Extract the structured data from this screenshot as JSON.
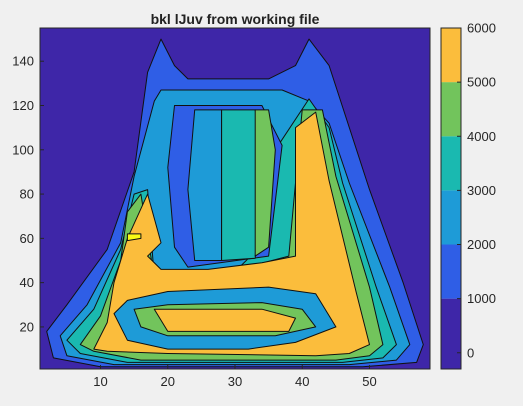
{
  "chart_data": {
    "type": "heatmap",
    "title": "bkl lJuv from working file",
    "xlabel": "",
    "ylabel": "",
    "xlim": [
      1,
      59
    ],
    "ylim": [
      1,
      155
    ],
    "x_ticks": [
      10,
      20,
      30,
      40,
      50
    ],
    "y_ticks": [
      20,
      40,
      60,
      80,
      100,
      120,
      140
    ],
    "colorbar": {
      "colormap": "parula",
      "range": [
        -300,
        6000
      ],
      "ticks": [
        0,
        1000,
        2000,
        3000,
        4000,
        5000,
        6000
      ]
    },
    "levels": [
      {
        "value": 0,
        "color": "#3e26a8"
      },
      {
        "value": 1000,
        "color": "#2f5ee6"
      },
      {
        "value": 2000,
        "color": "#1e9bd7"
      },
      {
        "value": 3000,
        "color": "#1ab9b0"
      },
      {
        "value": 4000,
        "color": "#72c45c"
      },
      {
        "value": 5000,
        "color": "#fbbd3c"
      },
      {
        "value": 6000,
        "color": "#f9fb15"
      }
    ],
    "regions": [
      {
        "level": 1,
        "points": [
          [
            2,
            18
          ],
          [
            5,
            30
          ],
          [
            11,
            55
          ],
          [
            15,
            90
          ],
          [
            17,
            135
          ],
          [
            19,
            150
          ],
          [
            21,
            138
          ],
          [
            23,
            132
          ],
          [
            35,
            132
          ],
          [
            39,
            138
          ],
          [
            41,
            150
          ],
          [
            44,
            138
          ],
          [
            50,
            82
          ],
          [
            55,
            40
          ],
          [
            58,
            12
          ],
          [
            57,
            4
          ],
          [
            49,
            2
          ],
          [
            10,
            2
          ],
          [
            3,
            6
          ]
        ]
      },
      {
        "level": 2,
        "points": [
          [
            4,
            16
          ],
          [
            8,
            30
          ],
          [
            13,
            58
          ],
          [
            15,
            88
          ],
          [
            18,
            122
          ],
          [
            19,
            127
          ],
          [
            37,
            127
          ],
          [
            41,
            122
          ],
          [
            44,
            112
          ],
          [
            47,
            85
          ],
          [
            53,
            38
          ],
          [
            56,
            12
          ],
          [
            54,
            5
          ],
          [
            47,
            3
          ],
          [
            12,
            3
          ],
          [
            5,
            7
          ]
        ]
      },
      {
        "level": 3,
        "points": [
          [
            5,
            14
          ],
          [
            9,
            28
          ],
          [
            13,
            55
          ],
          [
            15,
            80
          ],
          [
            17,
            82
          ],
          [
            18,
            42
          ],
          [
            22,
            44
          ],
          [
            30,
            45
          ],
          [
            35,
            60
          ],
          [
            36,
            100
          ],
          [
            41,
            123
          ],
          [
            44,
            110
          ],
          [
            46,
            85
          ],
          [
            51,
            38
          ],
          [
            54,
            12
          ],
          [
            52,
            6
          ],
          [
            46,
            4
          ],
          [
            14,
            4
          ],
          [
            7,
            8
          ]
        ]
      },
      {
        "level": 4,
        "points": [
          [
            7,
            12
          ],
          [
            10,
            25
          ],
          [
            13,
            50
          ],
          [
            14,
            72
          ],
          [
            16,
            80
          ],
          [
            18,
            42
          ],
          [
            25,
            44
          ],
          [
            33,
            48
          ],
          [
            38,
            52
          ],
          [
            40,
            118
          ],
          [
            43,
            118
          ],
          [
            45,
            88
          ],
          [
            50,
            38
          ],
          [
            52,
            12
          ],
          [
            50,
            7
          ],
          [
            45,
            5
          ],
          [
            16,
            5
          ],
          [
            9,
            9
          ]
        ]
      },
      {
        "level": 5,
        "points": [
          [
            9,
            10
          ],
          [
            11,
            22
          ],
          [
            12,
            40
          ],
          [
            14,
            60
          ],
          [
            17,
            80
          ],
          [
            19,
            58
          ],
          [
            17,
            52
          ],
          [
            19,
            46
          ],
          [
            26,
            46
          ],
          [
            34,
            49
          ],
          [
            39,
            52
          ],
          [
            39,
            110
          ],
          [
            42,
            117
          ],
          [
            44,
            86
          ],
          [
            48,
            36
          ],
          [
            50,
            12
          ],
          [
            47,
            8
          ],
          [
            42,
            7
          ],
          [
            20,
            8
          ],
          [
            11,
            9
          ]
        ]
      },
      {
        "level": 6,
        "points": [
          [
            14,
            62
          ],
          [
            16,
            62
          ],
          [
            16,
            60
          ],
          [
            14,
            59
          ]
        ]
      },
      {
        "level": 2,
        "points": [
          [
            12,
            26
          ],
          [
            14,
            32
          ],
          [
            20,
            36
          ],
          [
            35,
            38
          ],
          [
            42,
            35
          ],
          [
            45,
            20
          ],
          [
            39,
            13
          ],
          [
            32,
            10
          ],
          [
            20,
            10
          ],
          [
            14,
            14
          ]
        ]
      },
      {
        "level": 4,
        "points": [
          [
            15,
            28
          ],
          [
            20,
            30
          ],
          [
            34,
            31
          ],
          [
            40,
            28
          ],
          [
            42,
            20
          ],
          [
            36,
            16
          ],
          [
            20,
            16
          ],
          [
            16,
            20
          ]
        ]
      },
      {
        "level": 5,
        "points": [
          [
            18,
            28
          ],
          [
            34,
            28
          ],
          [
            39,
            24
          ],
          [
            38,
            18
          ],
          [
            20,
            18
          ]
        ]
      },
      {
        "level": 1,
        "points": [
          [
            23,
            47
          ],
          [
            35,
            52
          ],
          [
            37,
            102
          ],
          [
            34,
            120
          ],
          [
            21,
            120
          ],
          [
            20,
            92
          ],
          [
            21,
            56
          ]
        ]
      },
      {
        "level": 2,
        "points": [
          [
            24,
            50
          ],
          [
            28,
            50
          ],
          [
            28,
            118
          ],
          [
            24,
            118
          ],
          [
            23,
            82
          ]
        ]
      },
      {
        "level": 3,
        "points": [
          [
            28,
            50
          ],
          [
            33,
            51
          ],
          [
            34,
            100
          ],
          [
            33,
            118
          ],
          [
            28,
            118
          ]
        ]
      },
      {
        "level": 4,
        "points": [
          [
            33,
            52
          ],
          [
            35,
            56
          ],
          [
            36,
            100
          ],
          [
            35,
            118
          ],
          [
            33,
            118
          ]
        ]
      }
    ]
  }
}
